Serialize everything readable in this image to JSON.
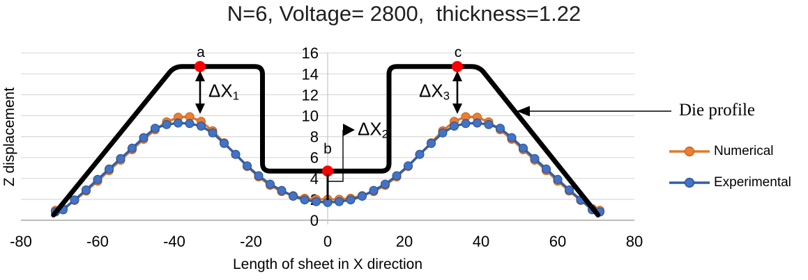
{
  "chart_data": {
    "type": "line",
    "title": "N=6, Voltage= 2800,  thickness=1.22",
    "xlabel": "Length of sheet in X direction",
    "ylabel": "Z displacement",
    "xlim": [
      -80,
      80
    ],
    "ylim": [
      0,
      16
    ],
    "x_ticks": [
      -80,
      -60,
      -40,
      -20,
      0,
      20,
      40,
      60,
      80
    ],
    "y_ticks": [
      0,
      2,
      4,
      6,
      8,
      10,
      12,
      14,
      16
    ],
    "grid": true,
    "legend_position": "right",
    "series": [
      {
        "name": "Die profile",
        "style": "thick-line",
        "color": "#000000",
        "points_x": [
          -71.5,
          -40,
          -17,
          -17,
          16,
          16,
          39.5,
          70.5
        ],
        "points_y": [
          0.5,
          14.7,
          14.7,
          4.7,
          4.7,
          14.7,
          14.7,
          0.5
        ]
      },
      {
        "name": "Numerical",
        "style": "line+markers",
        "color": "#ED7D31",
        "x": [
          -71,
          -69,
          -66,
          -63,
          -60,
          -57,
          -54,
          -51,
          -48,
          -45,
          -42,
          -39,
          -36,
          -33,
          -30,
          -27,
          -24,
          -21,
          -18,
          -15,
          -12,
          -9,
          -6,
          -3,
          0,
          3,
          6,
          9,
          12,
          15,
          18,
          21,
          24,
          27,
          30,
          33,
          36,
          39,
          42,
          45,
          48,
          51,
          54,
          57,
          60,
          63,
          66,
          69,
          71
        ],
        "y": [
          0.95,
          1.1,
          1.9,
          2.8,
          3.75,
          4.75,
          5.75,
          6.75,
          7.75,
          8.65,
          9.4,
          9.85,
          9.9,
          9.45,
          8.55,
          7.4,
          6.3,
          5.15,
          4.15,
          3.35,
          2.75,
          2.35,
          2.1,
          2.0,
          2.0,
          2.0,
          2.1,
          2.35,
          2.75,
          3.35,
          4.15,
          5.15,
          6.3,
          7.4,
          8.55,
          9.45,
          9.9,
          9.85,
          9.4,
          8.65,
          7.75,
          6.75,
          5.75,
          4.75,
          3.75,
          2.8,
          1.9,
          1.1,
          0.95
        ]
      },
      {
        "name": "Experimental",
        "style": "line+markers",
        "color": "#4472C4",
        "x": [
          -71,
          -69,
          -66,
          -63,
          -60,
          -57,
          -54,
          -51,
          -48,
          -45,
          -42,
          -39,
          -36,
          -33,
          -30,
          -27,
          -24,
          -21,
          -18,
          -15,
          -12,
          -9,
          -6,
          -3,
          0,
          3,
          6,
          9,
          12,
          15,
          18,
          21,
          24,
          27,
          30,
          33,
          36,
          39,
          42,
          45,
          48,
          51,
          54,
          57,
          60,
          63,
          66,
          69,
          71
        ],
        "y": [
          0.8,
          1.0,
          1.95,
          2.9,
          3.9,
          4.9,
          5.9,
          6.9,
          7.9,
          8.8,
          9.15,
          9.3,
          9.25,
          9.0,
          8.35,
          7.35,
          6.3,
          5.2,
          4.25,
          3.45,
          2.85,
          2.3,
          1.95,
          1.78,
          1.7,
          1.78,
          1.95,
          2.3,
          2.85,
          3.45,
          4.25,
          5.2,
          6.3,
          7.35,
          8.35,
          9.0,
          9.25,
          9.3,
          9.15,
          8.8,
          7.9,
          6.9,
          5.9,
          4.9,
          3.9,
          2.9,
          1.95,
          1.0,
          0.8
        ]
      }
    ],
    "annotation_points": [
      {
        "label": "a",
        "x": -33.3,
        "y": 14.7
      },
      {
        "label": "b",
        "x": 0,
        "y": 4.7
      },
      {
        "label": "c",
        "x": 33.8,
        "y": 14.7
      }
    ]
  },
  "annotations": {
    "a": "a",
    "b": "b",
    "c": "c",
    "dx1": {
      "text": "ΔX",
      "sub": "1"
    },
    "dx2": {
      "text": "ΔX",
      "sub": "2"
    },
    "dx3": {
      "text": "ΔX",
      "sub": "3"
    },
    "die_profile": "Die profile"
  },
  "legend": {
    "entries": [
      {
        "label": "Numerical",
        "line_color": "#DF7A28",
        "marker_color": "#ED7D31",
        "edge_color": "#C05F15"
      },
      {
        "label": "Experimental",
        "line_color": "#2F5FAA",
        "marker_color": "#4472C4",
        "edge_color": "#24508F"
      }
    ]
  },
  "colors": {
    "die": "#000000",
    "red_point": "#FF0000",
    "numerical_line": "#DF7A28",
    "numerical_fill": "#ED7D31",
    "numerical_edge": "#C05F15",
    "experimental_line": "#2F5FAA",
    "experimental_fill": "#4472C4",
    "experimental_edge": "#24508F",
    "grid": "#D9D9D9",
    "axis": "#A6A6A6",
    "zero_axis": "#C4C4C4",
    "annotation": "#000000"
  }
}
